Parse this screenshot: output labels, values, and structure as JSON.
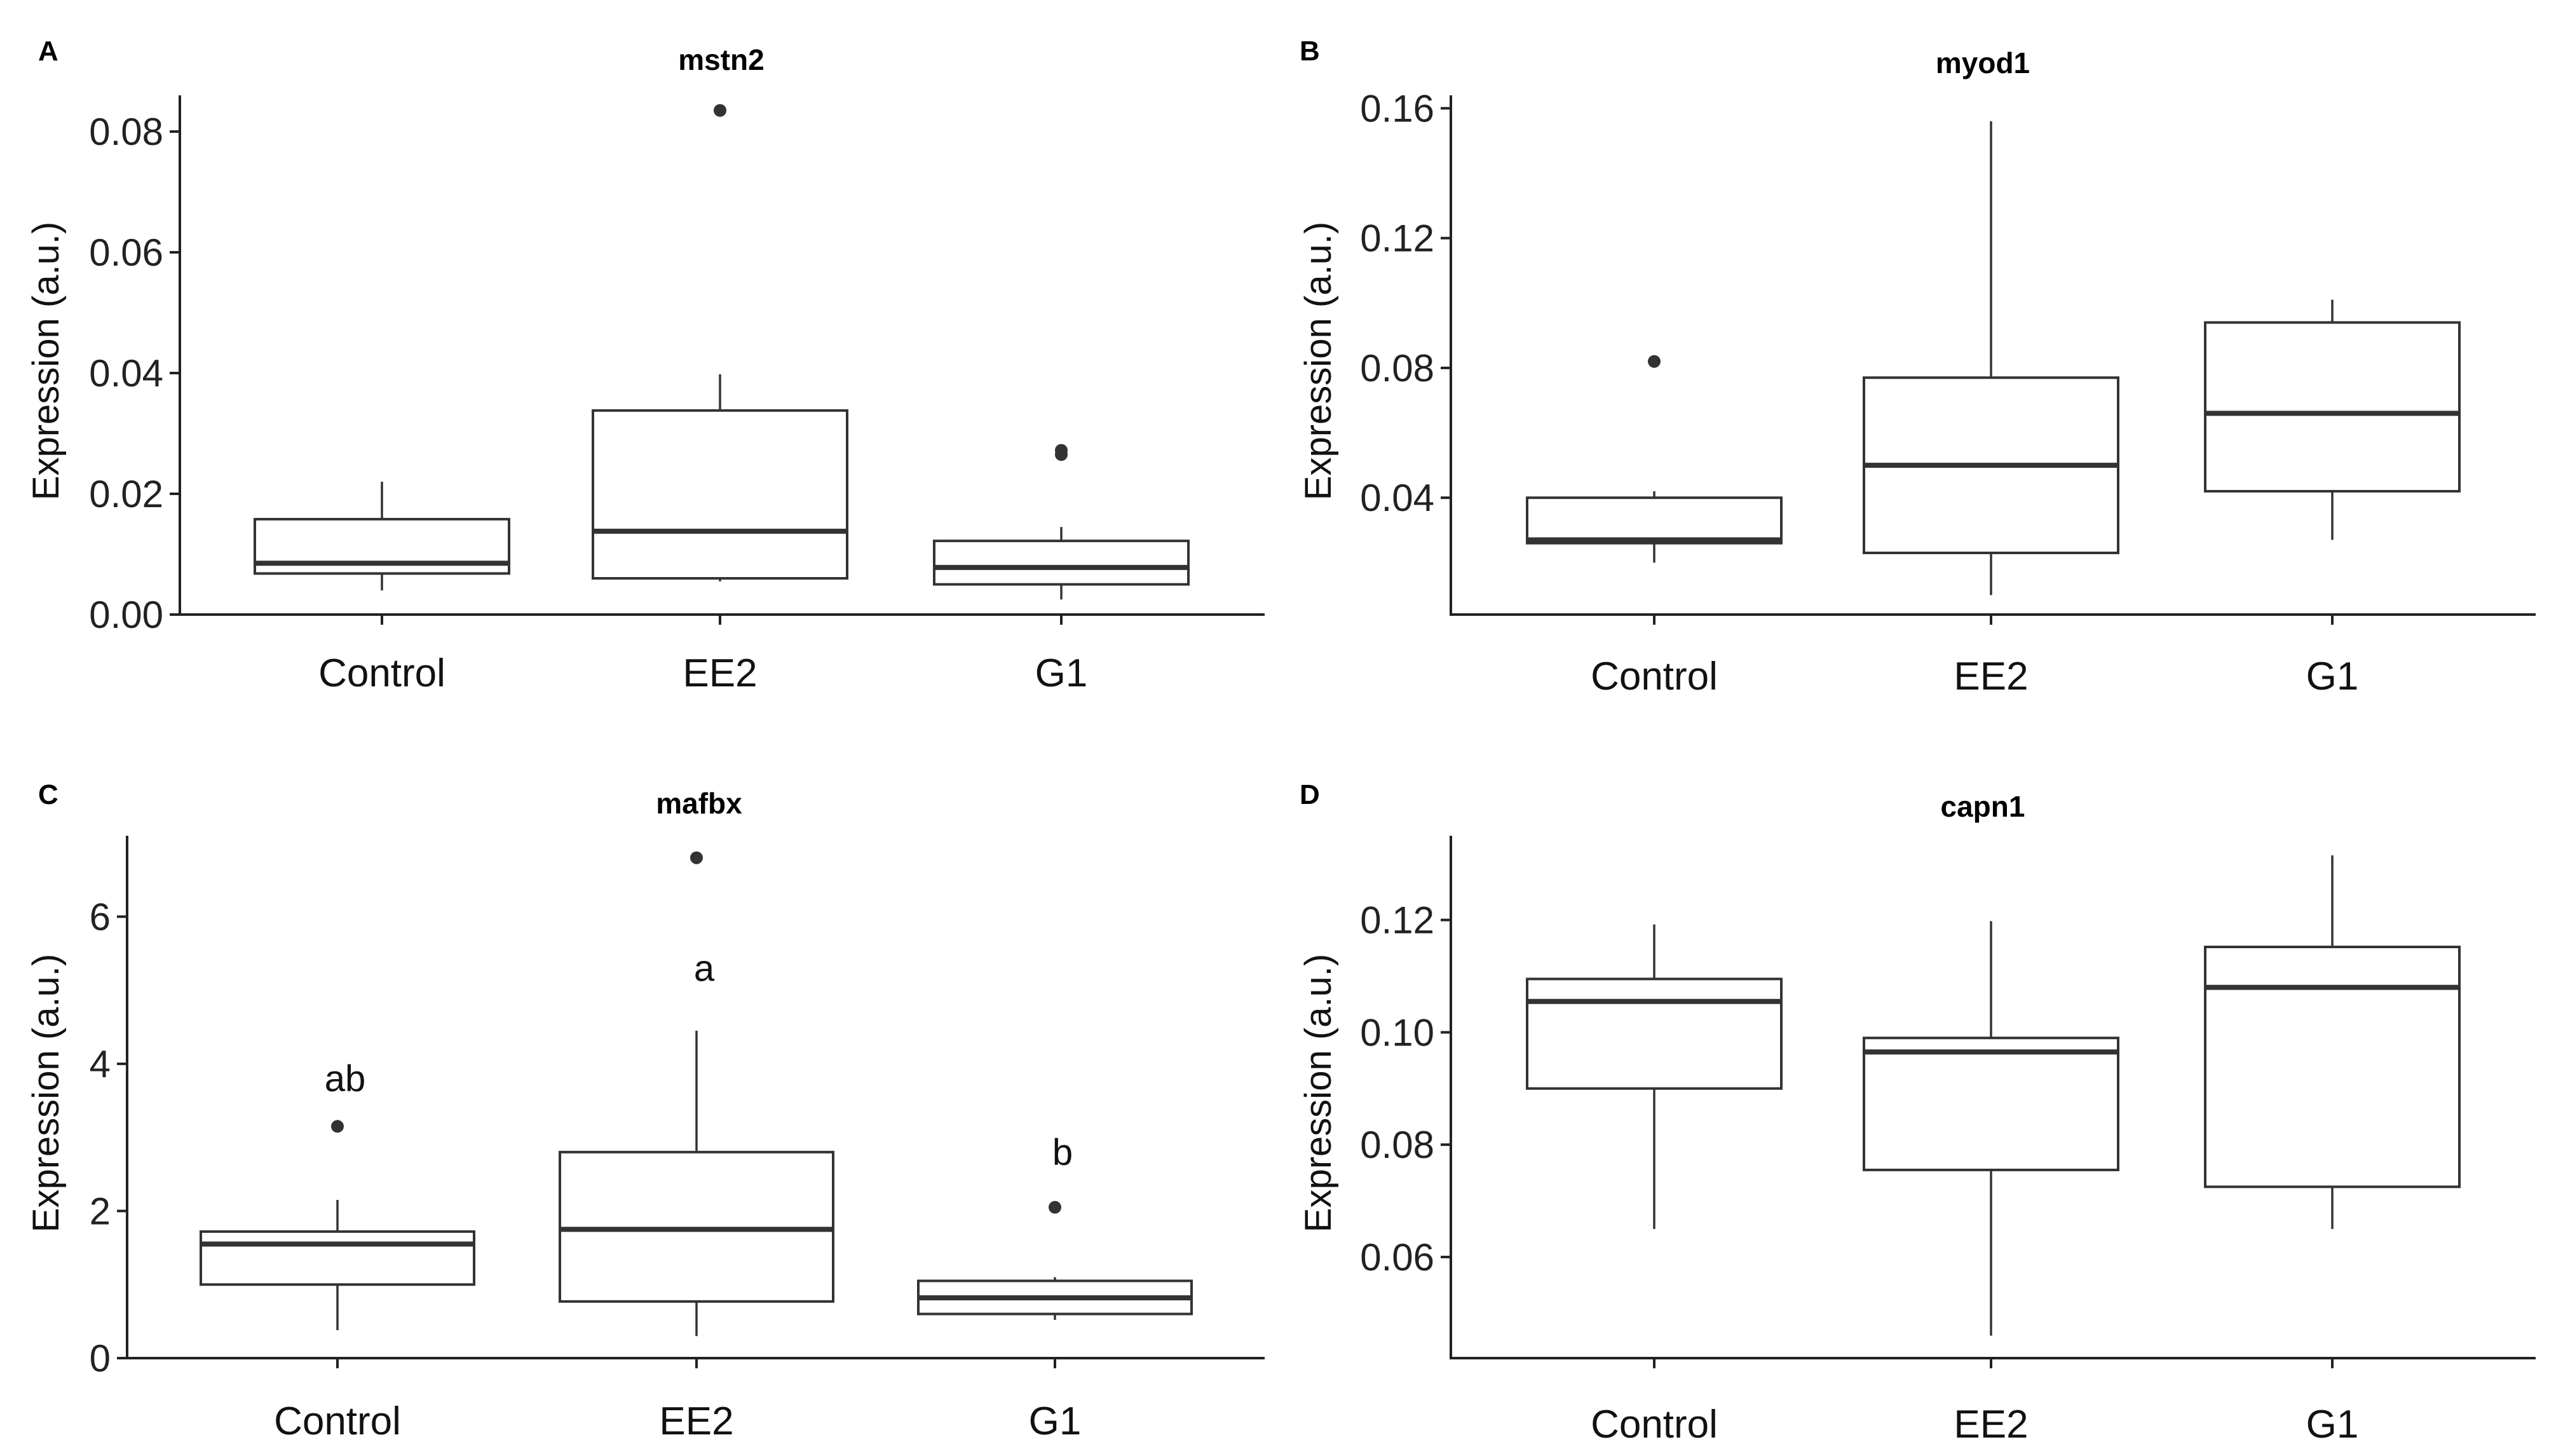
{
  "chart_data": [
    {
      "type": "boxplot",
      "panel": "A",
      "title": "mstn2",
      "ylabel": "Expression (a.u.)",
      "ylim": [
        0.0,
        0.086
      ],
      "yticks": [
        0.0,
        0.02,
        0.04,
        0.06,
        0.08
      ],
      "ytick_labels": [
        "0.00",
        "0.02",
        "0.04",
        "0.06",
        "0.08"
      ],
      "categories": [
        "Control",
        "EE2",
        "G1"
      ],
      "boxes": [
        {
          "min": 0.004,
          "q1": 0.0068,
          "median": 0.0085,
          "q3": 0.0158,
          "max": 0.022,
          "outliers": []
        },
        {
          "min": 0.0055,
          "q1": 0.006,
          "median": 0.0138,
          "q3": 0.0338,
          "max": 0.0398,
          "outliers": [
            0.0835
          ]
        },
        {
          "min": 0.0025,
          "q1": 0.005,
          "median": 0.0078,
          "q3": 0.0122,
          "max": 0.0145,
          "outliers": [
            0.0265,
            0.0272
          ]
        }
      ],
      "significance": []
    },
    {
      "type": "boxplot",
      "panel": "B",
      "title": "myod1",
      "ylabel": "Expression (a.u.)",
      "ylim": [
        0.004,
        0.164
      ],
      "yticks": [
        0.04,
        0.08,
        0.12,
        0.16
      ],
      "ytick_labels": [
        "0.04",
        "0.08",
        "0.12",
        "0.16"
      ],
      "categories": [
        "Control",
        "EE2",
        "G1"
      ],
      "boxes": [
        {
          "min": 0.02,
          "q1": 0.026,
          "median": 0.027,
          "q3": 0.04,
          "max": 0.042,
          "outliers": [
            0.082
          ]
        },
        {
          "min": 0.01,
          "q1": 0.023,
          "median": 0.05,
          "q3": 0.077,
          "max": 0.156,
          "outliers": []
        },
        {
          "min": 0.027,
          "q1": 0.042,
          "median": 0.066,
          "q3": 0.094,
          "max": 0.101,
          "outliers": []
        }
      ],
      "significance": []
    },
    {
      "type": "boxplot",
      "panel": "C",
      "title": "mafbx",
      "ylabel": "Expression (a.u.)",
      "ylim": [
        0,
        7.1
      ],
      "yticks": [
        0,
        2,
        4,
        6
      ],
      "ytick_labels": [
        "0",
        "2",
        "4",
        "6"
      ],
      "categories": [
        "Control",
        "EE2",
        "G1"
      ],
      "boxes": [
        {
          "min": 0.38,
          "q1": 1.0,
          "median": 1.55,
          "q3": 1.72,
          "max": 2.15,
          "outliers": [
            3.15
          ]
        },
        {
          "min": 0.3,
          "q1": 0.77,
          "median": 1.75,
          "q3": 2.8,
          "max": 4.45,
          "outliers": [
            6.8
          ]
        },
        {
          "min": 0.52,
          "q1": 0.6,
          "median": 0.82,
          "q3": 1.05,
          "max": 1.1,
          "outliers": [
            2.05
          ]
        }
      ],
      "significance": [
        "ab",
        "a",
        "b"
      ],
      "significance_y": [
        3.8,
        5.3,
        2.8
      ]
    },
    {
      "type": "boxplot",
      "panel": "D",
      "title": "capn1",
      "ylabel": "Expression (a.u.)",
      "ylim": [
        0.042,
        0.135
      ],
      "yticks": [
        0.06,
        0.08,
        0.1,
        0.12
      ],
      "ytick_labels": [
        "0.06",
        "0.08",
        "0.10",
        "0.12"
      ],
      "categories": [
        "Control",
        "EE2",
        "G1"
      ],
      "boxes": [
        {
          "min": 0.065,
          "q1": 0.09,
          "median": 0.1055,
          "q3": 0.1095,
          "max": 0.1192,
          "outliers": []
        },
        {
          "min": 0.046,
          "q1": 0.0755,
          "median": 0.0965,
          "q3": 0.099,
          "max": 0.1198,
          "outliers": []
        },
        {
          "min": 0.065,
          "q1": 0.0725,
          "median": 0.108,
          "q3": 0.1152,
          "max": 0.1315,
          "outliers": []
        }
      ],
      "significance": []
    }
  ]
}
